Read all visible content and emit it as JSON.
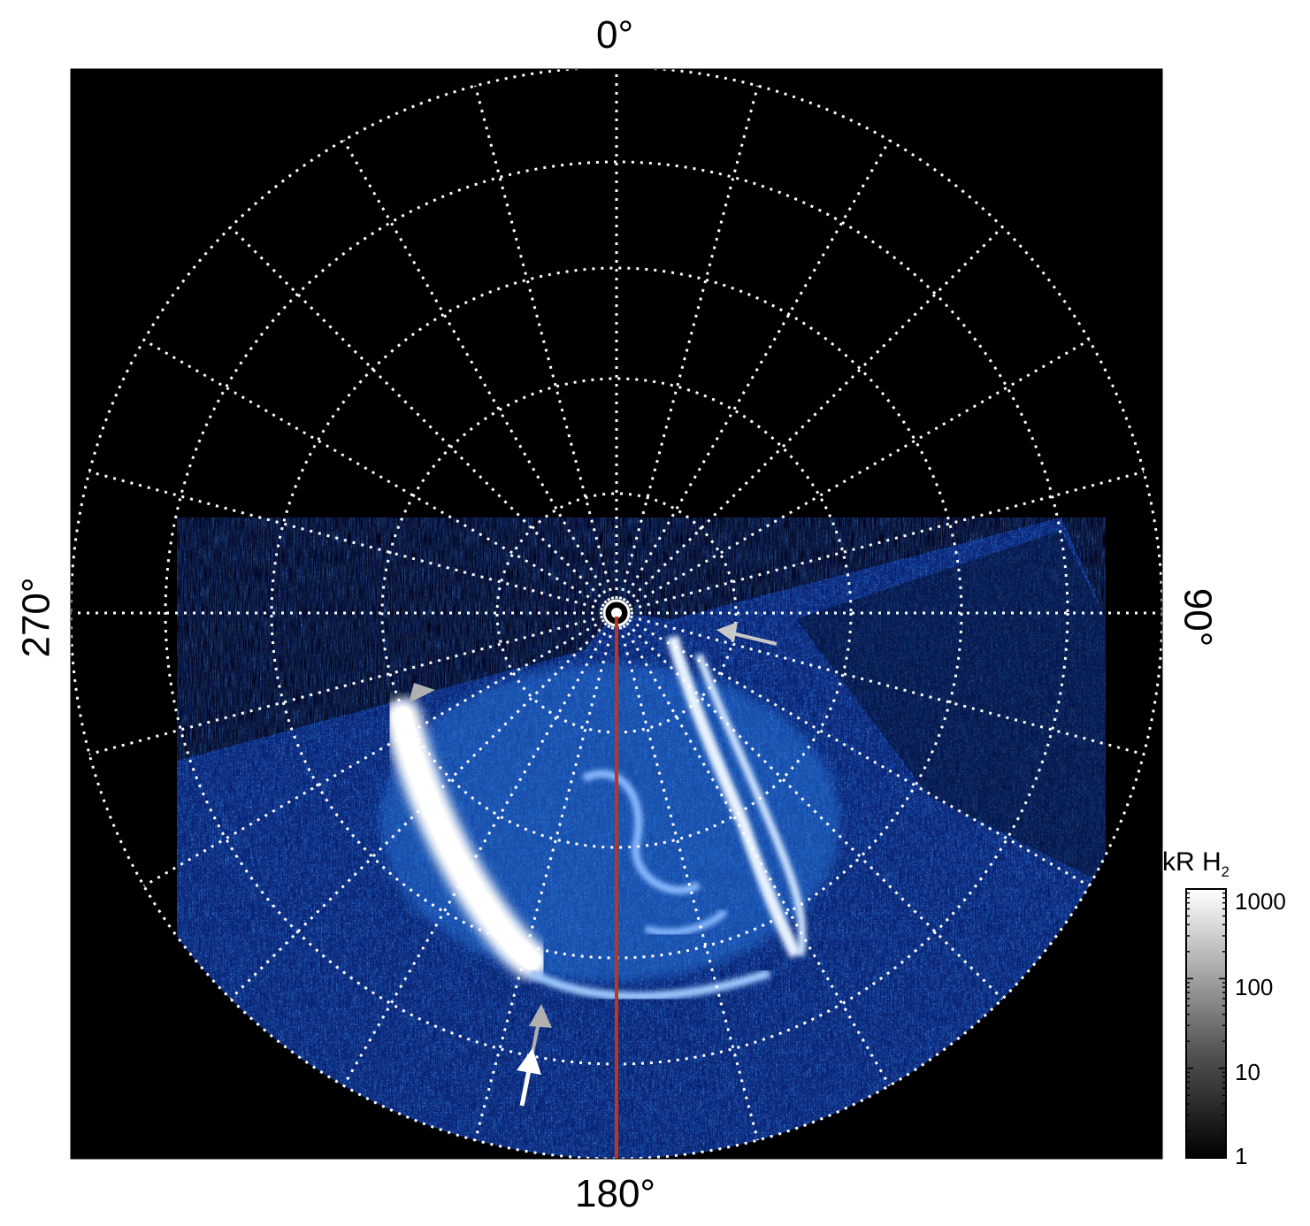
{
  "figure": {
    "labels": {
      "top": "0°",
      "bottom": "180°",
      "left": "270°",
      "right": "90°"
    },
    "colorbar": {
      "title_main": "kR H",
      "title_sub": "2",
      "ticks": [
        "1000",
        "100",
        "10",
        "1"
      ]
    },
    "colors": {
      "background": "#000000",
      "grid": "#ffffff",
      "aurora_dim": "#0a2a7a",
      "aurora_mid": "#1f6fe0",
      "aurora_bright": "#ffffff",
      "meridian_line": "#c1341a",
      "gray_arrow": "#b0b0b0",
      "white_arrow": "#ffffff"
    },
    "markers": {
      "meridian": "central-meridian-line",
      "arrows": [
        "gray-arrow-icon",
        "gray-arrow-icon",
        "gray-arrow-icon",
        "white-arrow-icon"
      ]
    }
  }
}
